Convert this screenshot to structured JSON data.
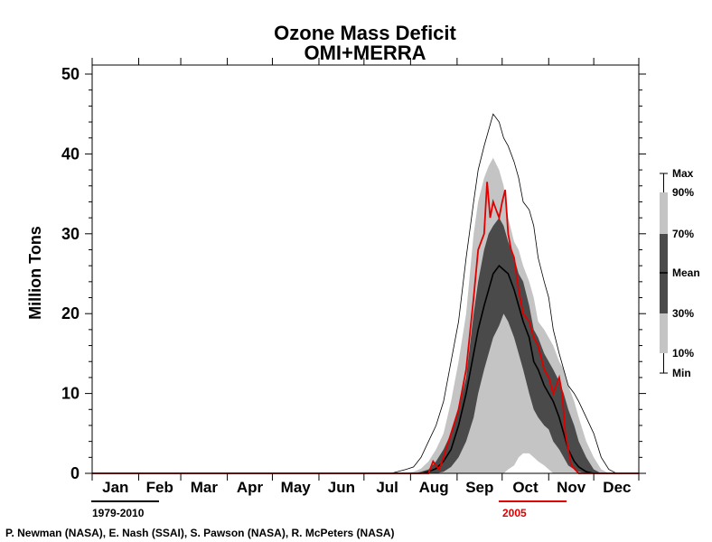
{
  "chart_data": {
    "type": "area",
    "title": "Ozone Mass Deficit",
    "subtitle": "OMI+MERRA",
    "xlabel": "",
    "ylabel": "Million Tons",
    "ylim": [
      0,
      50
    ],
    "yticks": [
      0,
      10,
      20,
      30,
      40,
      50
    ],
    "xlim_day": [
      1,
      365
    ],
    "months": [
      "Jan",
      "Feb",
      "Mar",
      "Apr",
      "May",
      "Jun",
      "Jul",
      "Aug",
      "Sep",
      "Oct",
      "Nov",
      "Dec"
    ],
    "x_day": [
      1,
      200,
      210,
      215,
      220,
      225,
      230,
      235,
      240,
      245,
      250,
      255,
      258,
      262,
      265,
      268,
      272,
      275,
      278,
      282,
      285,
      288,
      292,
      295,
      298,
      302,
      305,
      308,
      312,
      315,
      318,
      322,
      325,
      330,
      335,
      340,
      345,
      350,
      365
    ],
    "series": [
      {
        "name": "Max",
        "role": "max",
        "values": [
          0,
          0,
          0.5,
          0.8,
          2,
          4,
          6,
          9,
          14,
          19,
          27,
          34,
          38,
          41,
          43,
          45,
          44,
          42,
          41,
          39,
          37,
          34,
          33,
          31,
          27,
          24,
          22,
          18,
          15,
          13,
          11,
          10,
          9,
          7,
          5,
          2,
          0.5,
          0,
          0
        ]
      },
      {
        "name": "90%",
        "role": "p90",
        "values": [
          0,
          0,
          0,
          0.2,
          0.6,
          1.5,
          3,
          5,
          9,
          14,
          20,
          30,
          34,
          37,
          38.5,
          39.5,
          38,
          36,
          32,
          29,
          28,
          26,
          24,
          22,
          19,
          18,
          17,
          16,
          14,
          13,
          11,
          9,
          7,
          4,
          2,
          0.5,
          0,
          0,
          0
        ]
      },
      {
        "name": "70%",
        "role": "p70",
        "values": [
          0,
          0,
          0,
          0,
          0.2,
          0.5,
          1.5,
          3,
          5,
          8,
          12,
          20,
          24,
          28,
          30,
          31,
          32,
          31,
          29,
          27,
          25,
          24,
          21,
          18,
          17,
          15,
          14,
          13,
          11.5,
          10,
          8,
          6,
          4,
          2,
          0.5,
          0,
          0,
          0,
          0
        ]
      },
      {
        "name": "Mean",
        "role": "mean",
        "values": [
          0,
          0,
          0,
          0,
          0,
          0.2,
          0.6,
          1.5,
          3,
          6,
          10,
          15,
          18,
          21,
          23,
          25,
          26,
          25.5,
          25,
          23,
          21,
          19,
          17,
          14,
          13,
          11,
          10,
          9,
          7,
          5,
          3,
          1.5,
          0.8,
          0.2,
          0,
          0,
          0,
          0,
          0
        ]
      },
      {
        "name": "30%",
        "role": "p30",
        "values": [
          0,
          0,
          0,
          0,
          0,
          0,
          0,
          0.2,
          0.8,
          2,
          4,
          7,
          10,
          13,
          15,
          17,
          18.5,
          20,
          19,
          17,
          15,
          13,
          10,
          8,
          7,
          6,
          5.5,
          4,
          3,
          2,
          1,
          0.5,
          0.2,
          0,
          0,
          0,
          0,
          0,
          0
        ]
      },
      {
        "name": "10%",
        "role": "p10",
        "values": [
          0,
          0,
          0,
          0,
          0,
          0,
          0,
          0,
          0,
          0,
          0,
          0,
          0,
          0,
          0,
          0,
          0,
          0,
          0.5,
          1,
          2,
          2.5,
          2.5,
          2,
          1.5,
          1,
          0.5,
          0,
          0,
          0,
          0,
          0,
          0,
          0,
          0,
          0,
          0,
          0,
          0
        ]
      },
      {
        "name": "Min",
        "role": "min",
        "values": [
          0,
          0,
          0,
          0,
          0,
          0,
          0,
          0,
          0,
          0,
          0,
          0,
          0,
          0,
          0,
          0,
          0,
          0,
          0,
          0,
          0,
          0,
          0,
          0,
          0,
          0,
          0,
          0,
          0,
          0,
          0,
          0,
          0,
          0,
          0,
          0,
          0,
          0,
          0
        ]
      }
    ],
    "highlight": {
      "name": "2005",
      "color": "#e00000",
      "x_day": [
        1,
        225,
        228,
        232,
        235,
        240,
        245,
        250,
        255,
        258,
        260,
        262,
        264,
        266,
        268,
        270,
        272,
        274,
        276,
        278,
        280,
        282,
        285,
        288,
        292,
        295,
        298,
        302,
        305,
        308,
        310,
        312,
        314,
        316,
        320,
        325,
        330,
        365
      ],
      "values": [
        0,
        0,
        1.5,
        0.5,
        2,
        5,
        8,
        13,
        22,
        28,
        29,
        30,
        36.5,
        32,
        34,
        33,
        32,
        34,
        35.5,
        30,
        28,
        27,
        23,
        20,
        19,
        17,
        16,
        13,
        12,
        10,
        11,
        12,
        10,
        5,
        1,
        0,
        0,
        0
      ]
    },
    "legend": {
      "entries": [
        "Max",
        "90%",
        "70%",
        "Mean",
        "30%",
        "10%",
        "Min"
      ],
      "placement": "right"
    },
    "period_labels": {
      "climatology": "1979-2010",
      "highlight_year": "2005"
    },
    "credits": "P. Newman (NASA), E. Nash (SSAI), S. Pawson (NASA), R. McPeters (NASA)",
    "colors": {
      "band_outer": "#c4c4c4",
      "band_inner": "#4a4a4a",
      "mean_line": "#000000",
      "extreme_line": "#000000",
      "highlight_line": "#e00000",
      "axis": "#000000"
    }
  }
}
